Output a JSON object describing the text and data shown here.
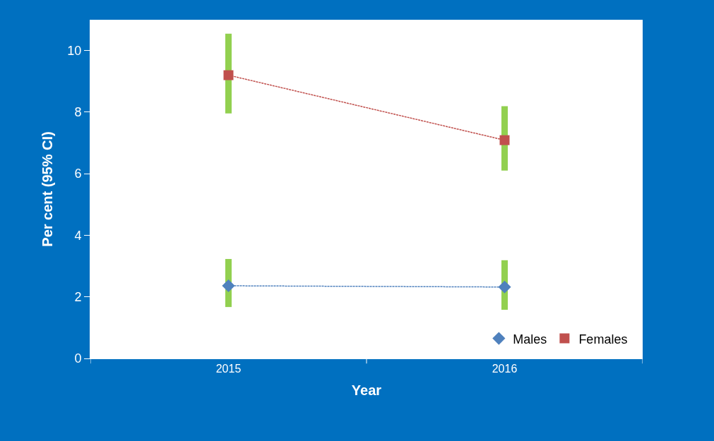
{
  "chart_data": {
    "type": "line",
    "xlabel": "Year",
    "ylabel": "Per cent (95% CI)",
    "categories": [
      "2015",
      "2016"
    ],
    "series": [
      {
        "name": "Males",
        "color": "#4f81bd",
        "marker": "diamond",
        "values": [
          2.36,
          2.32
        ],
        "errors": [
          [
            1.67,
            3.23
          ],
          [
            1.58,
            3.19
          ]
        ]
      },
      {
        "name": "Females",
        "color": "#c0504d",
        "marker": "square",
        "values": [
          9.2,
          7.09
        ],
        "errors": [
          [
            7.96,
            10.55
          ],
          [
            6.1,
            8.19
          ]
        ]
      }
    ],
    "ylim": [
      0,
      11
    ],
    "yticks": [
      0,
      2,
      4,
      6,
      8,
      10
    ],
    "legend": "bottom right",
    "line_style": "dashed"
  }
}
